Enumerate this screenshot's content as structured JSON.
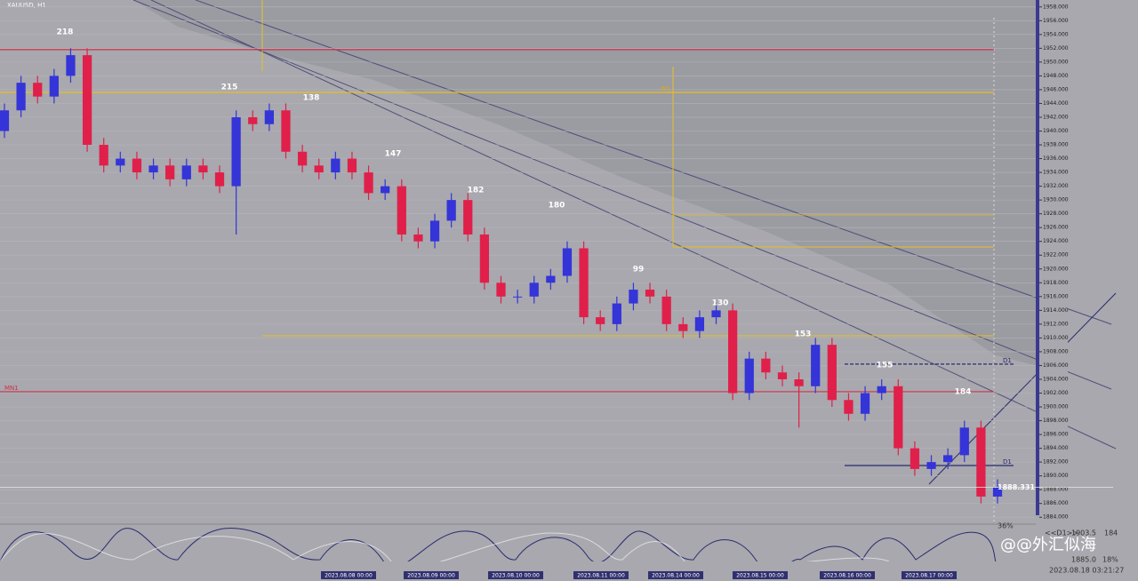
{
  "chart_data": {
    "type": "candlestick",
    "title": "XAUUSD, H1",
    "open": [
      1940,
      1943,
      1947,
      1945,
      1948,
      1951,
      1938,
      1935,
      1936,
      1934,
      1935,
      1933,
      1935,
      1934,
      1932,
      1942,
      1941,
      1943,
      1937,
      1935,
      1934,
      1936,
      1934,
      1931,
      1932,
      1925,
      1924,
      1927,
      1930,
      1925,
      1918,
      1916,
      1916,
      1918,
      1919,
      1923,
      1913,
      1912,
      1915,
      1917,
      1916,
      1912,
      1911,
      1913,
      1914,
      1902,
      1907,
      1905,
      1904,
      1903,
      1909,
      1901,
      1899,
      1902,
      1903,
      1894,
      1891,
      1892,
      1893,
      1897,
      1887
    ],
    "high": [
      1944,
      1948,
      1948,
      1949,
      1952,
      1952,
      1939,
      1937,
      1937,
      1936,
      1936,
      1936,
      1936,
      1935,
      1943,
      1943,
      1944,
      1944,
      1938,
      1936,
      1937,
      1937,
      1935,
      1933,
      1933,
      1926,
      1928,
      1931,
      1931,
      1926,
      1919,
      1917,
      1919,
      1920,
      1924,
      1924,
      1914,
      1916,
      1918,
      1918,
      1917,
      1913,
      1914,
      1915,
      1915,
      1908,
      1908,
      1906,
      1905,
      1910,
      1910,
      1902,
      1903,
      1904,
      1904,
      1895,
      1893,
      1894,
      1898,
      1898,
      1889.5
    ],
    "low": [
      1939,
      1942,
      1944,
      1944,
      1947,
      1937,
      1934,
      1934,
      1933,
      1933,
      1932,
      1932,
      1933,
      1931,
      1925,
      1940,
      1940,
      1936,
      1934,
      1933,
      1933,
      1933,
      1930,
      1930,
      1924,
      1923,
      1923,
      1926,
      1924,
      1917,
      1915,
      1915,
      1915,
      1917,
      1918,
      1912,
      1911,
      1911,
      1914,
      1915,
      1911,
      1910,
      1910,
      1912,
      1901,
      1901,
      1904,
      1903,
      1897,
      1902,
      1900,
      1898,
      1898,
      1901,
      1893,
      1890,
      1890,
      1891,
      1892,
      1886,
      1886
    ],
    "close": [
      1943,
      1947,
      1945,
      1948,
      1951,
      1938,
      1935,
      1936,
      1934,
      1935,
      1933,
      1935,
      1934,
      1932,
      1942,
      1941,
      1943,
      1937,
      1935,
      1934,
      1936,
      1934,
      1931,
      1932,
      1925,
      1924,
      1927,
      1930,
      1925,
      1918,
      1916,
      1916,
      1918,
      1919,
      1923,
      1913,
      1912,
      1915,
      1917,
      1916,
      1912,
      1911,
      1913,
      1914,
      1902,
      1907,
      1905,
      1904,
      1903,
      1909,
      1901,
      1899,
      1902,
      1903,
      1894,
      1891,
      1892,
      1893,
      1897,
      1887,
      1888.331
    ],
    "up_color": "#3434d8",
    "down_color": "#e0204a",
    "ylim": [
      1883,
      1959
    ],
    "yticks": [
      {
        "value": 1884,
        "label": "1884.000"
      },
      {
        "value": 1886,
        "label": "1886.000"
      },
      {
        "value": 1888,
        "label": "1888.000"
      },
      {
        "value": 1890,
        "label": "1890.000"
      },
      {
        "value": 1892,
        "label": "1892.000"
      },
      {
        "value": 1894,
        "label": "1894.000"
      },
      {
        "value": 1896,
        "label": "1896.000"
      },
      {
        "value": 1898,
        "label": "1898.000"
      },
      {
        "value": 1900,
        "label": "1900.000"
      },
      {
        "value": 1902,
        "label": "1902.000"
      },
      {
        "value": 1904,
        "label": "1904.000"
      },
      {
        "value": 1906,
        "label": "1906.000"
      },
      {
        "value": 1908,
        "label": "1908.000"
      },
      {
        "value": 1910,
        "label": "1910.000"
      },
      {
        "value": 1912,
        "label": "1912.000"
      },
      {
        "value": 1914,
        "label": "1914.000"
      },
      {
        "value": 1916,
        "label": "1916.000"
      },
      {
        "value": 1918,
        "label": "1918.000"
      },
      {
        "value": 1920,
        "label": "1920.000"
      },
      {
        "value": 1922,
        "label": "1922.000"
      },
      {
        "value": 1924,
        "label": "1924.000"
      },
      {
        "value": 1926,
        "label": "1926.000"
      },
      {
        "value": 1928,
        "label": "1928.000"
      },
      {
        "value": 1930,
        "label": "1930.000"
      },
      {
        "value": 1932,
        "label": "1932.000"
      },
      {
        "value": 1934,
        "label": "1934.000"
      },
      {
        "value": 1936,
        "label": "1936.000"
      },
      {
        "value": 1938,
        "label": "1938.000"
      },
      {
        "value": 1940,
        "label": "1940.000"
      },
      {
        "value": 1942,
        "label": "1942.000"
      },
      {
        "value": 1944,
        "label": "1944.000"
      },
      {
        "value": 1946,
        "label": "1946.000"
      },
      {
        "value": 1948,
        "label": "1948.000"
      },
      {
        "value": 1950,
        "label": "1950.000"
      },
      {
        "value": 1952,
        "label": "1952.000"
      },
      {
        "value": 1954,
        "label": "1954.000"
      },
      {
        "value": 1956,
        "label": "1956.000"
      },
      {
        "value": 1958,
        "label": "1958.000"
      }
    ],
    "levels": [
      {
        "value": 1951.8,
        "color": "#d0304a"
      },
      {
        "label": "W1",
        "value": 1945.6,
        "color": "#e8c020"
      },
      {
        "label": "MN1",
        "value": 1902.2,
        "color": "#d0304a"
      },
      {
        "label": "D1",
        "value": 1906.2,
        "color": "#2a2a70"
      },
      {
        "label": "D1",
        "value": 1891.5,
        "color": "#2a2a70"
      }
    ],
    "annotations": [
      "218",
      "215",
      "138",
      "147",
      "182",
      "180",
      "99",
      "130",
      "153",
      "155",
      "184"
    ],
    "time_labels": [
      "2023.08.08 00:00",
      "2023.08.09 00:00",
      "2023.08.10 00:00",
      "2023.08.11 00:00",
      "2023.08.14 00:00",
      "2023.08.15 00:00",
      "2023.08.16 00:00",
      "2023.08.17 00:00"
    ],
    "info": {
      "period": "<<D1>>",
      "high": "1903.5",
      "count": "184",
      "low": "1885.0",
      "pct": "18%",
      "pct2": "36%",
      "time": "2023.08.18 03:21:27",
      "watermark": "@@外汇似海"
    }
  }
}
